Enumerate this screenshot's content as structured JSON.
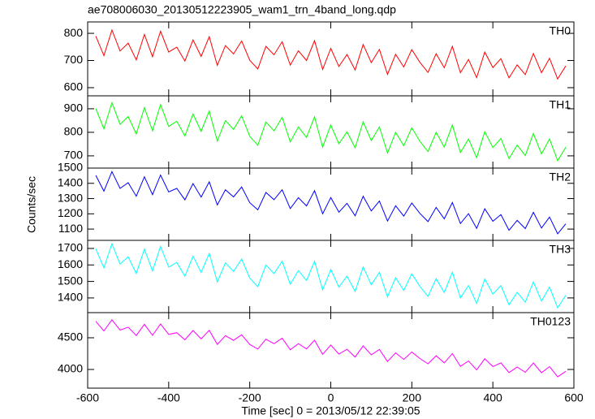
{
  "chart_data": {
    "type": "line",
    "title": "ae708006030_20130512223905_wam1_trn_4band_long.qdp",
    "xlabel": "Time [sec] 0 = 2013/05/12 22:39:05",
    "ylabel": "Counts/sec",
    "xlim": [
      -600,
      600
    ],
    "xticks": [
      -600,
      -400,
      -200,
      0,
      200,
      400,
      600
    ],
    "x": [
      -580,
      -560,
      -540,
      -520,
      -500,
      -480,
      -460,
      -440,
      -420,
      -400,
      -380,
      -360,
      -340,
      -320,
      -300,
      -280,
      -260,
      -240,
      -220,
      -200,
      -180,
      -160,
      -140,
      -120,
      -100,
      -80,
      -60,
      -40,
      -20,
      0,
      20,
      40,
      60,
      80,
      100,
      120,
      140,
      160,
      180,
      200,
      220,
      240,
      260,
      280,
      300,
      320,
      340,
      360,
      380,
      400,
      420,
      440,
      460,
      480,
      500,
      520,
      540,
      560,
      580
    ],
    "panels": [
      {
        "name": "TH0",
        "color": "#ff0000",
        "ylim": [
          570,
          842
        ],
        "yticks": [
          600,
          700,
          800
        ],
        "values": [
          790,
          718,
          812,
          735,
          764,
          702,
          796,
          714,
          808,
          731,
          749,
          698,
          776,
          715,
          788,
          682,
          755,
          724,
          772,
          701,
          669,
          752,
          721,
          769,
          683,
          736,
          700,
          773,
          667,
          745,
          678,
          722,
          665,
          759,
          692,
          741,
          649,
          723,
          676,
          740,
          693,
          656,
          725,
          673,
          752,
          655,
          704,
          637,
          731,
          674,
          707,
          636,
          684,
          648,
          726,
          655,
          708,
          632,
          680
        ]
      },
      {
        "name": "TH1",
        "color": "#00ff00",
        "ylim": [
          648,
          955
        ],
        "yticks": [
          700,
          800,
          900
        ],
        "values": [
          901,
          815,
          926,
          834,
          867,
          793,
          905,
          806,
          918,
          825,
          847,
          784,
          878,
          804,
          891,
          763,
          850,
          812,
          870,
          783,
          745,
          844,
          806,
          864,
          759,
          823,
          778,
          866,
          737,
          831,
          751,
          802,
          734,
          845,
          765,
          823,
          712,
          800,
          743,
          819,
          762,
          718,
          800,
          737,
          831,
          714,
          772,
          692,
          803,
          735,
          774,
          688,
          746,
          701,
          795,
          708,
          772,
          679,
          737
        ]
      },
      {
        "name": "TH2",
        "color": "#0000ff",
        "ylim": [
          1026,
          1500
        ],
        "yticks": [
          1100,
          1200,
          1300,
          1400,
          1500
        ],
        "values": [
          1452,
          1349,
          1477,
          1367,
          1404,
          1315,
          1443,
          1326,
          1454,
          1344,
          1367,
          1292,
          1399,
          1310,
          1410,
          1258,
          1358,
          1311,
          1376,
          1273,
          1226,
          1340,
          1293,
          1358,
          1234,
          1306,
          1252,
          1352,
          1200,
          1307,
          1211,
          1269,
          1187,
          1315,
          1219,
          1284,
          1153,
          1253,
          1185,
          1271,
          1203,
          1149,
          1242,
          1167,
          1274,
          1136,
          1201,
          1105,
          1233,
          1151,
          1195,
          1092,
          1157,
          1103,
          1210,
          1107,
          1179,
          1069,
          1134
        ]
      },
      {
        "name": "TH3",
        "color": "#00ffff",
        "ylim": [
          1311,
          1749
        ],
        "yticks": [
          1400,
          1500,
          1600,
          1700
        ],
        "values": [
          1698,
          1582,
          1729,
          1605,
          1649,
          1548,
          1696,
          1564,
          1712,
          1587,
          1615,
          1531,
          1654,
          1554,
          1670,
          1497,
          1613,
          1561,
          1636,
          1520,
          1468,
          1600,
          1547,
          1623,
          1483,
          1566,
          1506,
          1622,
          1449,
          1573,
          1465,
          1532,
          1440,
          1588,
          1480,
          1555,
          1407,
          1523,
          1446,
          1546,
          1470,
          1409,
          1517,
          1433,
          1556,
          1400,
          1476,
          1367,
          1515,
          1423,
          1475,
          1358,
          1434,
          1374,
          1497,
          1381,
          1465,
          1340,
          1416
        ]
      },
      {
        "name": "TH0123",
        "color": "#ff00ff",
        "ylim": [
          3705,
          4897
        ],
        "yticks": [
          4000,
          4500
        ],
        "values": [
          4760,
          4607,
          4784,
          4621,
          4668,
          4535,
          4712,
          4539,
          4717,
          4554,
          4581,
          4468,
          4615,
          4482,
          4619,
          4396,
          4533,
          4460,
          4547,
          4394,
          4321,
          4478,
          4406,
          4493,
          4310,
          4407,
          4324,
          4461,
          4238,
          4385,
          4242,
          4319,
          4196,
          4373,
          4230,
          4317,
          4125,
          4262,
          4159,
          4276,
          4173,
          4090,
          4217,
          4104,
          4251,
          4048,
          4135,
          3992,
          4169,
          4046,
          4103,
          3951,
          4038,
          3955,
          4102,
          3949,
          4046,
          3883,
          3970
        ]
      }
    ]
  }
}
